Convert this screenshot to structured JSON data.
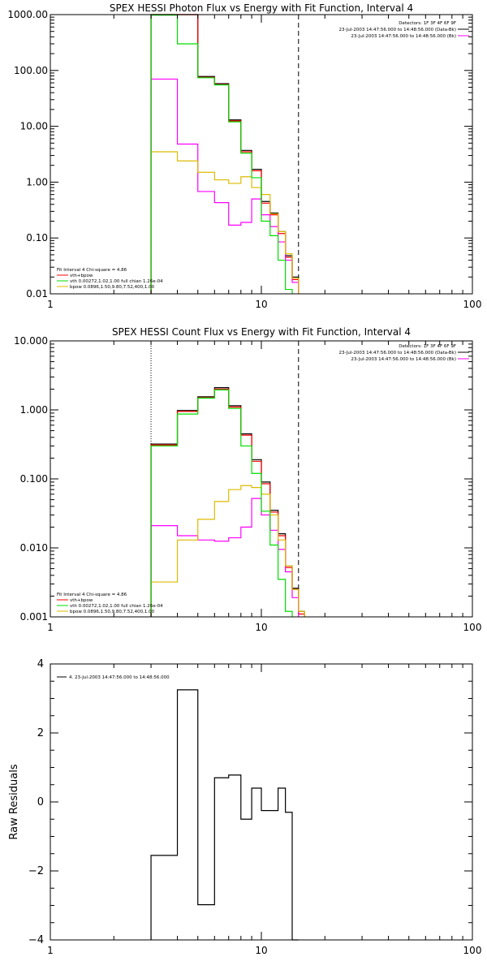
{
  "colors": {
    "background": "#ffffff",
    "axes": "#000000",
    "total": "#000000",
    "data_minus_bk": "#ff0000",
    "bk": "#ff00ff",
    "vth": "#00dd00",
    "bpow": "#ddbb00"
  },
  "chart_data": [
    {
      "type": "line",
      "title": "SPEX HESSI Photon Flux vs Energy with Fit Function, Interval 4",
      "xlabel": "",
      "ylabel": "",
      "xscale": "log",
      "yscale": "log",
      "xlim": [
        1,
        100
      ],
      "ylim": [
        0.01,
        1000
      ],
      "xticks": [
        "1",
        "10",
        "100"
      ],
      "yticks": [
        "1000.00",
        "100.00",
        "10.00",
        "1.00",
        "0.10",
        "0.01"
      ],
      "legend_header": [
        "Detectors: 1F 3F 4F 6F 9F",
        "23-Jul-2003 14:47:56.000 to 14:48:56.000 (Data-Bk)",
        "23-Jul-2003 14:47:56.000 to 14:48:56.000 (Bk)"
      ],
      "fit_legend": [
        "Fit Interval 4   Chi-square = 4.86",
        "vth+bpow",
        "vth 0.00272,1.02,1.00  full chian 1.26e-04",
        "bpow 0.0896,1.50,9.80,7.52,400,1.00"
      ],
      "edges": [
        3,
        4,
        5,
        6,
        7,
        8,
        9,
        10,
        11,
        12,
        13,
        14,
        15,
        16,
        17,
        18
      ],
      "series": [
        {
          "key": "total",
          "values": [
            1050,
            1050,
            78,
            58,
            13,
            3.7,
            1.7,
            0.45,
            0.28,
            0.13,
            0.048,
            0.02,
            null,
            null,
            null
          ]
        },
        {
          "key": "data_minus_bk",
          "values": [
            1000,
            1000,
            75,
            56,
            12.5,
            3.5,
            1.6,
            0.42,
            0.26,
            0.12,
            0.045,
            0.018,
            null,
            null,
            null
          ]
        },
        {
          "key": "vth",
          "values": [
            980,
            300,
            74,
            55,
            12,
            3.3,
            1.2,
            0.2,
            0.11,
            0.04,
            0.012,
            null,
            null,
            null,
            null
          ]
        },
        {
          "key": "bk",
          "values": [
            70,
            4.8,
            0.68,
            0.43,
            0.17,
            0.19,
            0.5,
            0.26,
            0.16,
            0.085,
            0.04,
            0.016,
            null,
            null,
            null
          ]
        },
        {
          "key": "bpow",
          "values": [
            3.5,
            2.4,
            1.5,
            1.1,
            0.95,
            1.25,
            0.8,
            0.6,
            0.27,
            0.13,
            0.052,
            0.019,
            null,
            null,
            null
          ]
        }
      ],
      "vlines": [
        {
          "x": 3,
          "style": "dotted"
        },
        {
          "x": 15,
          "style": "dashed"
        }
      ]
    },
    {
      "type": "line",
      "title": "SPEX HESSI Count Flux vs Energy with Fit Function, Interval 4",
      "xlabel": "",
      "ylabel": "",
      "xscale": "log",
      "yscale": "log",
      "xlim": [
        1,
        100
      ],
      "ylim": [
        0.001,
        10
      ],
      "xticks": [
        "1",
        "10",
        "100"
      ],
      "yticks": [
        "10.000",
        "1.000",
        "0.100",
        "0.010",
        "0.001"
      ],
      "legend_header": [
        "Detectors: 1F 3F 4F 6F 9F",
        "23-Jul-2003 14:47:56.000 to 14:48:56.000 (Data-Bk)",
        "23-Jul-2003 14:47:56.000 to 14:48:56.000 (Bk)"
      ],
      "fit_legend": [
        "Fit Interval 4   Chi-square = 4.86",
        "vth+bpow",
        "vth 0.00272,1.02,1.00  full chian 1.26e-04",
        "bpow 0.0896,1.50,9.80,7.52,400,1.00"
      ],
      "edges": [
        3,
        4,
        5,
        6,
        7,
        8,
        9,
        10,
        11,
        12,
        13,
        14,
        15,
        16,
        17,
        18
      ],
      "series": [
        {
          "key": "total",
          "values": [
            0.32,
            0.98,
            1.55,
            2.1,
            1.15,
            0.45,
            0.19,
            0.09,
            0.035,
            0.016,
            0.0055,
            0.0026,
            0.0012,
            null,
            null
          ]
        },
        {
          "key": "data_minus_bk",
          "values": [
            0.31,
            0.95,
            1.5,
            2.0,
            1.1,
            0.43,
            0.18,
            0.085,
            0.033,
            0.015,
            0.0052,
            0.0025,
            0.0011,
            null,
            null
          ]
        },
        {
          "key": "vth",
          "values": [
            0.3,
            0.87,
            1.48,
            1.95,
            1.05,
            0.3,
            0.12,
            0.034,
            0.011,
            0.0035,
            0.0012,
            null,
            null,
            null,
            null
          ]
        },
        {
          "key": "bk",
          "values": [
            0.021,
            0.015,
            0.013,
            0.0125,
            0.014,
            0.02,
            0.052,
            0.03,
            0.018,
            0.0095,
            0.0045,
            0.0019,
            null,
            null,
            null
          ]
        },
        {
          "key": "bpow",
          "values": [
            0.0032,
            0.013,
            0.026,
            0.047,
            0.07,
            0.08,
            0.075,
            0.06,
            0.03,
            0.013,
            0.0055,
            0.0025,
            0.0012,
            null,
            null
          ]
        }
      ],
      "vlines": [
        {
          "x": 3,
          "style": "dotted"
        },
        {
          "x": 15,
          "style": "dashed"
        }
      ]
    },
    {
      "type": "line",
      "title": "",
      "xlabel": "",
      "ylabel": "Raw Residuals",
      "xscale": "log",
      "yscale": "linear",
      "xlim": [
        1,
        100
      ],
      "ylim": [
        -4,
        4
      ],
      "xticks": [
        "1",
        "10",
        "100"
      ],
      "yticks": [
        "4",
        "2",
        "0",
        "-2",
        "-4"
      ],
      "legend": [
        "4. 23-Jul-2003 14:47:56.000 to 14:48:56.000"
      ],
      "edges": [
        3,
        4,
        5,
        6,
        7,
        8,
        9,
        10,
        11,
        12,
        13,
        14,
        15
      ],
      "series": [
        {
          "key": "total",
          "values": [
            -1.55,
            3.25,
            -2.98,
            0.7,
            0.78,
            -0.5,
            0.4,
            -0.25,
            -0.25,
            0.4,
            -0.3,
            -4.0
          ]
        }
      ]
    }
  ]
}
